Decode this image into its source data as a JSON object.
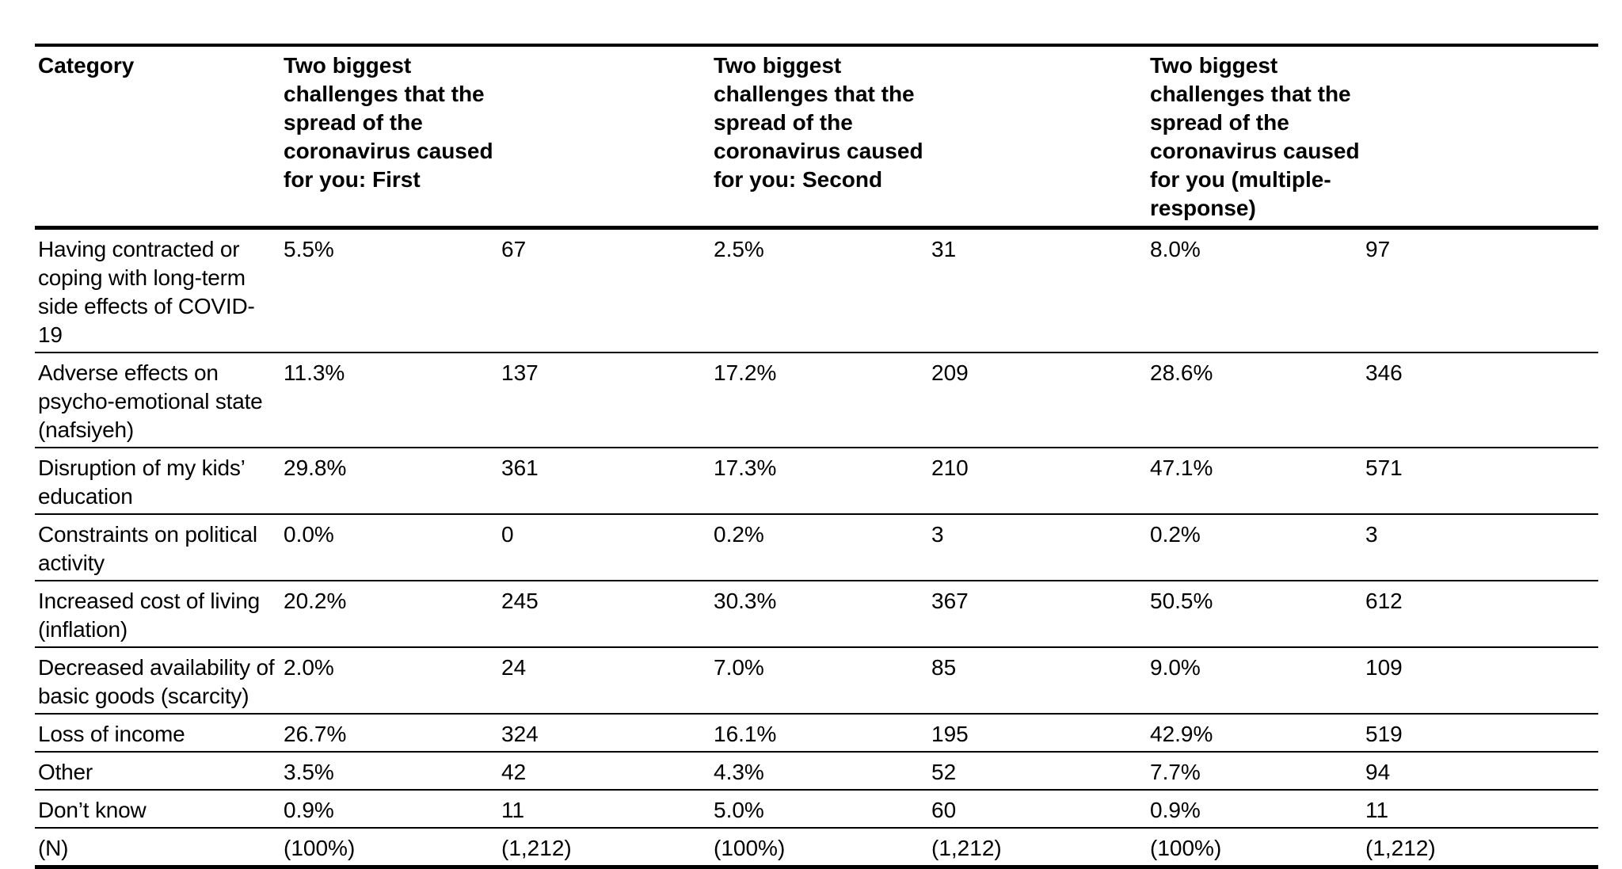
{
  "headers": {
    "category": "Category",
    "first": "Two biggest challenges that the spread of the coronavirus caused for you: First",
    "second": "Two biggest challenges that the spread of the coronavirus caused for you: Second",
    "multiple": "Two biggest challenges that the spread of the coronavirus caused for you (multiple-response)"
  },
  "rows": [
    {
      "category": "Having contracted or coping with long-term side effects of COVID-19",
      "first_pct": "5.5%",
      "first_n": "67",
      "second_pct": "2.5%",
      "second_n": "31",
      "multi_pct": "8.0%",
      "multi_n": "97"
    },
    {
      "category": "Adverse effects on psycho-emotional state (nafsiyeh)",
      "first_pct": "11.3%",
      "first_n": "137",
      "second_pct": "17.2%",
      "second_n": "209",
      "multi_pct": "28.6%",
      "multi_n": "346"
    },
    {
      "category": "Disruption of my kids’ education",
      "first_pct": "29.8%",
      "first_n": "361",
      "second_pct": "17.3%",
      "second_n": "210",
      "multi_pct": "47.1%",
      "multi_n": "571"
    },
    {
      "category": "Constraints on political activity",
      "first_pct": "0.0%",
      "first_n": "0",
      "second_pct": "0.2%",
      "second_n": "3",
      "multi_pct": "0.2%",
      "multi_n": "3"
    },
    {
      "category": "Increased cost of living (inflation)",
      "first_pct": "20.2%",
      "first_n": "245",
      "second_pct": "30.3%",
      "second_n": "367",
      "multi_pct": "50.5%",
      "multi_n": "612"
    },
    {
      "category": "Decreased availability of basic goods (scarcity)",
      "first_pct": "2.0%",
      "first_n": "24",
      "second_pct": "7.0%",
      "second_n": "85",
      "multi_pct": "9.0%",
      "multi_n": "109"
    },
    {
      "category": "Loss of income",
      "first_pct": "26.7%",
      "first_n": "324",
      "second_pct": "16.1%",
      "second_n": "195",
      "multi_pct": "42.9%",
      "multi_n": "519"
    },
    {
      "category": "Other",
      "first_pct": "3.5%",
      "first_n": "42",
      "second_pct": "4.3%",
      "second_n": "52",
      "multi_pct": "7.7%",
      "multi_n": "94"
    },
    {
      "category": "Don’t know",
      "first_pct": "0.9%",
      "first_n": "11",
      "second_pct": "5.0%",
      "second_n": "60",
      "multi_pct": "0.9%",
      "multi_n": "11"
    },
    {
      "category": "(N)",
      "first_pct": "(100%)",
      "first_n": "(1,212)",
      "second_pct": "(100%)",
      "second_n": "(1,212)",
      "multi_pct": "(100%)",
      "multi_n": "(1,212)"
    }
  ]
}
